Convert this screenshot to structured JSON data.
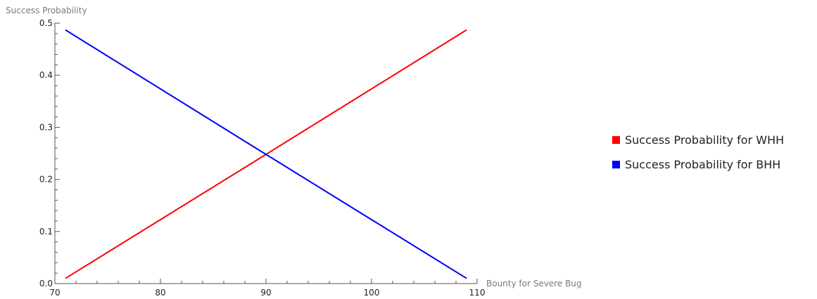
{
  "chart_data": {
    "type": "line",
    "title": "",
    "xlabel": "Bounty for Severe Bug",
    "ylabel": "Success Probability",
    "xlim": [
      70,
      110
    ],
    "ylim": [
      0,
      0.5
    ],
    "x_ticks": [
      {
        "value": 70,
        "label": "70"
      },
      {
        "value": 80,
        "label": "80"
      },
      {
        "value": 90,
        "label": "90"
      },
      {
        "value": 100,
        "label": "100"
      },
      {
        "value": 110,
        "label": "110"
      }
    ],
    "y_ticks": [
      {
        "value": 0,
        "label": "0.0"
      },
      {
        "value": 0.1,
        "label": "0.1"
      },
      {
        "value": 0.2,
        "label": "0.2"
      },
      {
        "value": 0.3,
        "label": "0.3"
      },
      {
        "value": 0.4,
        "label": "0.4"
      },
      {
        "value": 0.5,
        "label": "0.5"
      }
    ],
    "x_minor_step": 2,
    "y_minor_step": 0.02,
    "grid": false,
    "legend_position": "right",
    "series": [
      {
        "name": "Success Probability for WHH",
        "color": "#ff0000",
        "points": [
          {
            "x": 71,
            "y": 0.01
          },
          {
            "x": 90,
            "y": 0.248
          },
          {
            "x": 109,
            "y": 0.487
          }
        ]
      },
      {
        "name": "Success Probability for BHH",
        "color": "#0000ff",
        "points": [
          {
            "x": 71,
            "y": 0.487
          },
          {
            "x": 90,
            "y": 0.248
          },
          {
            "x": 109,
            "y": 0.01
          }
        ]
      }
    ]
  }
}
